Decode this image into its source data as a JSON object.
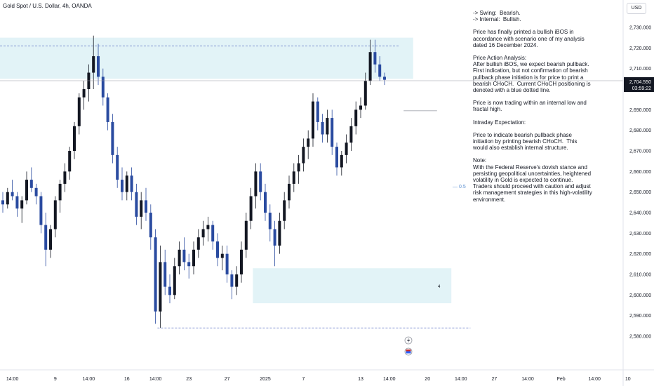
{
  "title": "Gold Spot / U.S. Dollar, 4h, OANDA",
  "currency_button": "USD",
  "price_tag": {
    "price": "2,704.550",
    "countdown": "03:59:22"
  },
  "fib_label": "0.5",
  "zone_label": "4",
  "notes": [
    "-> Swing:  Bearish.\n-> Internal:  Bullish.",
    "Price has finally printed a bullish iBOS in accordance with scenario one of my analysis dated 16 December 2024.",
    "Price Action Analysis:\nAfter bullish iBOS, we expect bearish pullback.\nFirst indication, but not confirmation of bearish pullback phase initiation is for price to print a bearish CHoCH.  Current CHoCH positioning is denoted with a blue dotted line.",
    "Price is now trading within an internal low and fractal high.",
    "Intraday Expectation:",
    "Price to indicate bearish pullback phase initiation by printing bearish CHoCH.  This would also establish internal structure.",
    "Note:\nWith the Federal Reserve's dovish stance and persisting geopolitical uncertainties, heightened volatility in Gold is expected to continue. Traders should proceed with caution and adjust risk management strategies in this high-volatility environment."
  ],
  "colors": {
    "bull": "#131722",
    "bear": "#2a4ba0",
    "zone": "#d6eef4",
    "dashed": "#5b6fc2",
    "price_tag_bg": "#131722"
  },
  "chart_data": {
    "type": "candlestick",
    "title": "Gold Spot / U.S. Dollar, 4h, OANDA",
    "ylim": [
      2575,
      2735
    ],
    "y_ticks": [
      "2,730.000",
      "2,720.000",
      "2,710.000",
      "2,700.000",
      "2,690.000",
      "2,680.000",
      "2,670.000",
      "2,660.000",
      "2,650.000",
      "2,640.000",
      "2,630.000",
      "2,620.000",
      "2,610.000",
      "2,600.000",
      "2,590.000",
      "2,580.000"
    ],
    "y_tick_values": [
      2730,
      2720,
      2710,
      2700,
      2690,
      2680,
      2670,
      2660,
      2650,
      2640,
      2630,
      2620,
      2610,
      2600,
      2590,
      2580
    ],
    "x_labels": [
      "14:00",
      "9",
      "14:00",
      "16",
      "14:00",
      "23",
      "27",
      "2025",
      "7",
      "13",
      "14:00",
      "20",
      "14:00",
      "27",
      "14:00",
      "Feb",
      "14:00",
      "10"
    ],
    "x_label_index": [
      2,
      11,
      18,
      26,
      32,
      39,
      47,
      55,
      63,
      75,
      81,
      89,
      96,
      103,
      110,
      117,
      124,
      131
    ],
    "zones": [
      {
        "top": 2725,
        "bottom": 2705,
        "start": 0,
        "end": 86
      },
      {
        "top": 2613,
        "bottom": 2596,
        "start": 53,
        "end": 94
      }
    ],
    "dashed_lines": [
      {
        "y": 2721,
        "start": 0,
        "end": 83
      },
      {
        "y": 2584,
        "start": 33,
        "end": 98
      }
    ],
    "choch_line": {
      "y": 2689.5,
      "start": 84,
      "end": 91
    },
    "current_price": 2704.55,
    "candles": [
      [
        2646,
        2650,
        2640,
        2644
      ],
      [
        2644,
        2652,
        2642,
        2650
      ],
      [
        2650,
        2656,
        2646,
        2648
      ],
      [
        2648,
        2650,
        2638,
        2642
      ],
      [
        2642,
        2648,
        2635,
        2646
      ],
      [
        2646,
        2660,
        2644,
        2656
      ],
      [
        2656,
        2662,
        2650,
        2652
      ],
      [
        2652,
        2654,
        2644,
        2648
      ],
      [
        2648,
        2650,
        2630,
        2634
      ],
      [
        2634,
        2640,
        2614,
        2622
      ],
      [
        2622,
        2634,
        2618,
        2632
      ],
      [
        2632,
        2648,
        2628,
        2646
      ],
      [
        2646,
        2656,
        2640,
        2654
      ],
      [
        2654,
        2664,
        2650,
        2660
      ],
      [
        2660,
        2672,
        2656,
        2670
      ],
      [
        2670,
        2684,
        2666,
        2682
      ],
      [
        2682,
        2698,
        2678,
        2696
      ],
      [
        2696,
        2704,
        2690,
        2700
      ],
      [
        2700,
        2712,
        2694,
        2708
      ],
      [
        2708,
        2726,
        2700,
        2716
      ],
      [
        2716,
        2722,
        2702,
        2706
      ],
      [
        2706,
        2710,
        2692,
        2696
      ],
      [
        2696,
        2698,
        2680,
        2684
      ],
      [
        2684,
        2688,
        2664,
        2668
      ],
      [
        2668,
        2672,
        2652,
        2656
      ],
      [
        2656,
        2662,
        2646,
        2650
      ],
      [
        2650,
        2660,
        2646,
        2658
      ],
      [
        2658,
        2662,
        2646,
        2650
      ],
      [
        2650,
        2654,
        2634,
        2638
      ],
      [
        2638,
        2650,
        2632,
        2646
      ],
      [
        2646,
        2652,
        2636,
        2640
      ],
      [
        2640,
        2644,
        2622,
        2628
      ],
      [
        2628,
        2632,
        2586,
        2592
      ],
      [
        2592,
        2624,
        2584,
        2616
      ],
      [
        2616,
        2622,
        2600,
        2604
      ],
      [
        2604,
        2610,
        2596,
        2600
      ],
      [
        2600,
        2618,
        2598,
        2614
      ],
      [
        2614,
        2626,
        2610,
        2622
      ],
      [
        2622,
        2628,
        2612,
        2616
      ],
      [
        2616,
        2620,
        2608,
        2614
      ],
      [
        2614,
        2626,
        2610,
        2622
      ],
      [
        2622,
        2632,
        2618,
        2628
      ],
      [
        2628,
        2636,
        2624,
        2632
      ],
      [
        2632,
        2638,
        2626,
        2634
      ],
      [
        2634,
        2636,
        2622,
        2626
      ],
      [
        2626,
        2630,
        2614,
        2618
      ],
      [
        2618,
        2624,
        2612,
        2620
      ],
      [
        2620,
        2624,
        2606,
        2610
      ],
      [
        2610,
        2612,
        2598,
        2604
      ],
      [
        2604,
        2614,
        2600,
        2610
      ],
      [
        2610,
        2626,
        2606,
        2622
      ],
      [
        2622,
        2640,
        2618,
        2636
      ],
      [
        2636,
        2652,
        2632,
        2648
      ],
      [
        2648,
        2664,
        2642,
        2660
      ],
      [
        2660,
        2664,
        2646,
        2650
      ],
      [
        2650,
        2654,
        2636,
        2640
      ],
      [
        2640,
        2644,
        2626,
        2632
      ],
      [
        2632,
        2636,
        2614,
        2624
      ],
      [
        2624,
        2640,
        2620,
        2636
      ],
      [
        2636,
        2650,
        2632,
        2646
      ],
      [
        2646,
        2658,
        2642,
        2654
      ],
      [
        2654,
        2664,
        2650,
        2660
      ],
      [
        2660,
        2668,
        2654,
        2664
      ],
      [
        2664,
        2676,
        2660,
        2672
      ],
      [
        2672,
        2680,
        2666,
        2676
      ],
      [
        2676,
        2698,
        2672,
        2694
      ],
      [
        2694,
        2696,
        2680,
        2684
      ],
      [
        2684,
        2688,
        2674,
        2678
      ],
      [
        2678,
        2690,
        2674,
        2686
      ],
      [
        2686,
        2690,
        2668,
        2672
      ],
      [
        2672,
        2674,
        2658,
        2662
      ],
      [
        2662,
        2670,
        2658,
        2668
      ],
      [
        2668,
        2678,
        2664,
        2674
      ],
      [
        2674,
        2686,
        2670,
        2682
      ],
      [
        2682,
        2694,
        2678,
        2690
      ],
      [
        2690,
        2696,
        2686,
        2692
      ],
      [
        2692,
        2708,
        2690,
        2704
      ],
      [
        2704,
        2724,
        2702,
        2718
      ],
      [
        2718,
        2724,
        2708,
        2712
      ],
      [
        2712,
        2716,
        2704,
        2706
      ],
      [
        2706,
        2708,
        2702,
        2704.55
      ]
    ]
  }
}
